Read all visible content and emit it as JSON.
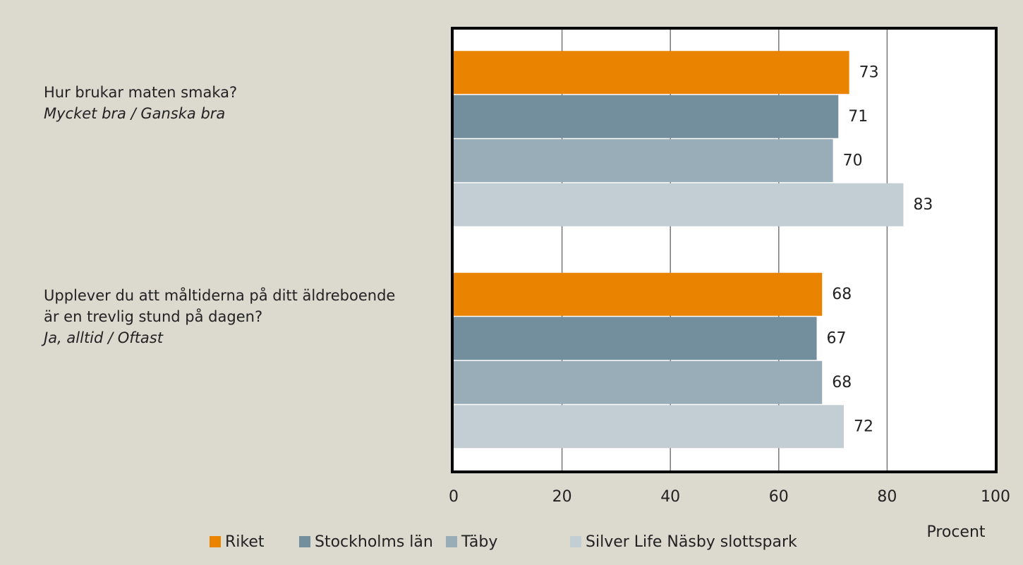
{
  "chart_data": {
    "type": "hbar",
    "categories": [
      "Hur brukar maten smaka?",
      "Upplever du att måltiderna på ditt äldreboende är en trevlig stund på dagen?"
    ],
    "category_answers": [
      "Mycket bra / Ganska bra",
      "Ja, alltid / Oftast"
    ],
    "series": [
      {
        "name": "Riket",
        "color": "#e98300",
        "values": [
          73,
          68
        ]
      },
      {
        "name": "Stockholms län",
        "color": "#738f9e",
        "values": [
          71,
          67
        ]
      },
      {
        "name": "Täby",
        "color": "#99adb9",
        "values": [
          70,
          68
        ]
      },
      {
        "name": "Silver Life Näsby slottspark",
        "color": "#c3cdd4",
        "values": [
          83,
          72
        ]
      }
    ],
    "xlabel": "Procent",
    "xlim": [
      0,
      100
    ],
    "xticks": [
      0,
      20,
      40,
      60,
      80,
      100
    ],
    "grid": true,
    "legend": "bottom"
  }
}
